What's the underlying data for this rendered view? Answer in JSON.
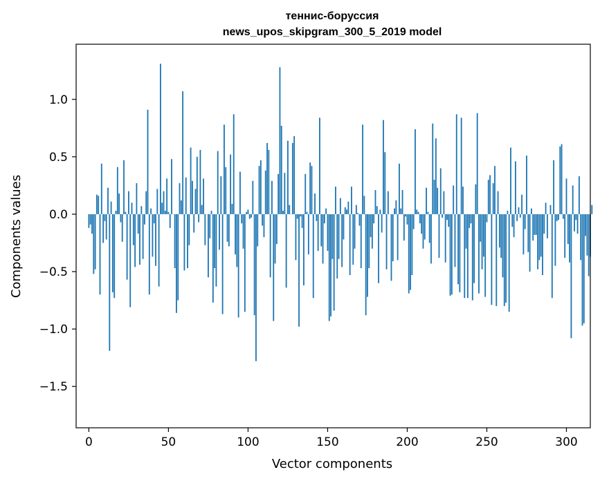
{
  "chart_data": {
    "type": "bar",
    "title": "теннис-боруссия",
    "subtitle": "news_upos_skipgram_300_5_2019 model",
    "xlabel": "Vector components",
    "ylabel": "Components values",
    "xlim": [
      -8,
      315
    ],
    "ylim": [
      -1.86,
      1.48
    ],
    "xticks": [
      0,
      50,
      100,
      150,
      200,
      250,
      300
    ],
    "xtick_labels": [
      "0",
      "50",
      "100",
      "150",
      "200",
      "250",
      "300"
    ],
    "yticks": [
      -1.5,
      -1.0,
      -0.5,
      0.0,
      0.5,
      1.0
    ],
    "ytick_labels": [
      "−1.5",
      "−1.0",
      "−0.5",
      "0.0",
      "0.5",
      "1.0"
    ],
    "bar_color": "#1f77b4",
    "grid": false,
    "legend": "none",
    "values": [
      -0.12,
      -0.09,
      -0.17,
      -0.52,
      -0.48,
      0.17,
      0.16,
      -0.7,
      0.44,
      -0.25,
      -0.06,
      -0.22,
      0.23,
      -1.19,
      0.11,
      -0.68,
      -0.73,
      0.03,
      0.41,
      0.18,
      -0.07,
      -0.24,
      0.47,
      0.02,
      -0.57,
      0.2,
      -0.81,
      0.1,
      -0.27,
      -0.46,
      0.27,
      -0.17,
      -0.44,
      0.07,
      -0.39,
      -0.09,
      0.2,
      0.91,
      -0.7,
      0.05,
      -0.37,
      -0.08,
      -0.45,
      0.22,
      -0.63,
      1.31,
      0.1,
      0.2,
      0.03,
      0.31,
      0.02,
      -0.12,
      0.48,
      0.0,
      -0.47,
      -0.86,
      -0.75,
      0.27,
      0.12,
      1.07,
      -0.49,
      0.32,
      -0.47,
      -0.27,
      0.58,
      0.29,
      -0.16,
      0.22,
      0.5,
      -0.07,
      0.56,
      0.08,
      0.31,
      -0.27,
      0.0,
      -0.55,
      -0.21,
      0.03,
      -0.77,
      -0.47,
      -0.63,
      0.55,
      -0.31,
      0.33,
      -0.87,
      0.78,
      0.41,
      -0.24,
      -0.28,
      0.52,
      0.09,
      0.87,
      -0.35,
      -0.46,
      -0.9,
      0.37,
      -0.08,
      -0.3,
      -0.85,
      0.02,
      0.04,
      -0.04,
      -0.03,
      0.29,
      -0.88,
      -1.28,
      -0.28,
      0.42,
      0.47,
      -0.1,
      -0.2,
      0.38,
      0.62,
      0.56,
      -0.55,
      0.29,
      -0.93,
      -0.43,
      -0.26,
      0.35,
      1.28,
      0.77,
      0.03,
      0.36,
      -0.64,
      0.64,
      0.08,
      0.0,
      0.62,
      0.68,
      -0.4,
      -0.04,
      -0.98,
      -0.02,
      -0.12,
      -0.62,
      0.35,
      0.02,
      -0.35,
      0.45,
      0.42,
      -0.73,
      0.18,
      -0.06,
      -0.32,
      0.84,
      -0.28,
      -0.43,
      -0.08,
      0.05,
      -0.32,
      -0.93,
      -0.89,
      -0.39,
      -0.84,
      0.24,
      -0.56,
      -0.39,
      0.14,
      -0.46,
      -0.22,
      0.06,
      0.04,
      0.11,
      -0.53,
      0.24,
      -0.44,
      -0.3,
      0.08,
      0.01,
      -0.1,
      -0.47,
      0.78,
      0.16,
      -0.88,
      -0.72,
      -0.47,
      -0.2,
      -0.3,
      -0.08,
      0.21,
      0.07,
      -0.6,
      0.04,
      -0.16,
      0.82,
      0.54,
      -0.48,
      0.2,
      0.0,
      -0.58,
      -0.41,
      0.05,
      0.12,
      -0.4,
      0.44,
      0.05,
      0.21,
      -0.23,
      -0.02,
      -0.09,
      -0.69,
      -0.66,
      -0.53,
      -0.13,
      0.74,
      0.04,
      0.02,
      -0.08,
      -0.17,
      -0.3,
      -0.22,
      0.23,
      0.02,
      -0.25,
      -0.43,
      0.79,
      0.3,
      0.66,
      0.23,
      -0.38,
      0.4,
      -0.03,
      0.2,
      -0.42,
      -0.05,
      -0.11,
      -0.71,
      -0.7,
      0.25,
      -0.46,
      0.87,
      -0.61,
      -0.68,
      0.84,
      0.24,
      -0.73,
      -0.3,
      -0.73,
      -0.12,
      -0.08,
      -0.75,
      -0.6,
      0.26,
      0.88,
      -0.69,
      -0.24,
      -0.48,
      -0.37,
      -0.72,
      -0.07,
      0.3,
      0.34,
      -0.79,
      0.27,
      0.42,
      -0.8,
      0.2,
      -0.29,
      -0.38,
      -0.55,
      -0.8,
      -0.77,
      0.03,
      -0.85,
      0.58,
      -0.11,
      -0.2,
      0.46,
      -0.06,
      0.06,
      -0.03,
      0.17,
      -0.35,
      -0.13,
      0.51,
      -0.33,
      -0.5,
      0.05,
      -0.23,
      -0.18,
      -0.18,
      -0.48,
      -0.4,
      -0.37,
      -0.53,
      -0.17,
      0.1,
      -0.21,
      0.0,
      0.08,
      -0.73,
      0.47,
      -0.45,
      -0.06,
      -0.05,
      0.59,
      0.61,
      -0.04,
      -0.38,
      0.31,
      -0.26,
      -0.42,
      -1.08,
      0.25,
      -0.15,
      -0.05,
      -0.17,
      0.33,
      -0.4,
      -0.97,
      -0.95,
      -0.19,
      -0.36,
      -0.54,
      -0.37,
      0.08
    ]
  }
}
